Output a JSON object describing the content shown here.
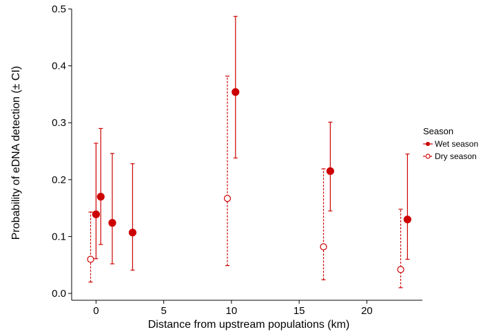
{
  "chart_data": {
    "type": "scatter",
    "xlabel": "Distance from upstream populations (km)",
    "ylabel": "Probability of eDNA detection (± CI)",
    "xlim": [
      -1.8,
      24.1
    ],
    "ylim": [
      -0.012,
      0.5
    ],
    "x_ticks": [
      0,
      5,
      10,
      15,
      20
    ],
    "y_ticks": [
      0.0,
      0.1,
      0.2,
      0.3,
      0.4,
      0.5
    ],
    "x_tick_labels": [
      "0",
      "5",
      "10",
      "15",
      "20"
    ],
    "y_tick_labels": [
      "0.0",
      "0.1",
      "0.2",
      "0.3",
      "0.4",
      "0.5"
    ],
    "grid": false,
    "error_bars": true,
    "legend": {
      "title": "Season",
      "position": "right"
    },
    "series": [
      {
        "name": "Wet season",
        "marker": "filled-circle",
        "line_style": "solid",
        "color": "#cc0000",
        "points": [
          {
            "x": 0.0,
            "y": 0.139,
            "lower": 0.061,
            "upper": 0.264
          },
          {
            "x": 0.35,
            "y": 0.17,
            "lower": 0.086,
            "upper": 0.29
          },
          {
            "x": 1.2,
            "y": 0.124,
            "lower": 0.052,
            "upper": 0.246
          },
          {
            "x": 2.7,
            "y": 0.107,
            "lower": 0.041,
            "upper": 0.228
          },
          {
            "x": 10.3,
            "y": 0.354,
            "lower": 0.238,
            "upper": 0.487
          },
          {
            "x": 17.3,
            "y": 0.215,
            "lower": 0.145,
            "upper": 0.301
          },
          {
            "x": 23.0,
            "y": 0.13,
            "lower": 0.06,
            "upper": 0.245
          }
        ]
      },
      {
        "name": "Dry season",
        "marker": "open-circle",
        "line_style": "dashed",
        "color": "#cc0000",
        "points": [
          {
            "x": -0.4,
            "y": 0.06,
            "lower": 0.02,
            "upper": 0.143
          },
          {
            "x": 9.7,
            "y": 0.167,
            "lower": 0.049,
            "upper": 0.382
          },
          {
            "x": 16.8,
            "y": 0.082,
            "lower": 0.024,
            "upper": 0.219
          },
          {
            "x": 22.5,
            "y": 0.042,
            "lower": 0.01,
            "upper": 0.148
          }
        ]
      }
    ]
  }
}
